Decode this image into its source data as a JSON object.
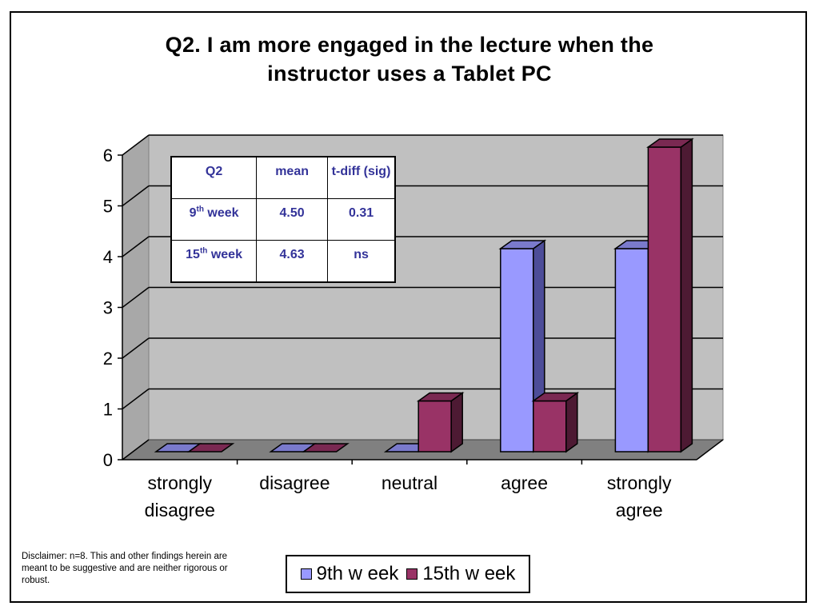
{
  "chart_data": {
    "type": "bar",
    "style": "3d-clustered-column",
    "title_lines": [
      "Q2.  I am more engaged in the lecture when the",
      "instructor uses a Tablet PC"
    ],
    "categories": [
      [
        "strongly",
        "disagree"
      ],
      [
        "disagree"
      ],
      [
        "neutral"
      ],
      [
        "agree"
      ],
      [
        "strongly",
        "agree"
      ]
    ],
    "series": [
      {
        "name": "9th w eek",
        "values": [
          0,
          0,
          0,
          4,
          4
        ],
        "color": "#9999FF",
        "side_color": "#4D4D99",
        "top_color": "#7A7ACC"
      },
      {
        "name": "15th w eek",
        "values": [
          0,
          0,
          1,
          1,
          6
        ],
        "color": "#993366",
        "side_color": "#4D1A33",
        "top_color": "#7A2952"
      }
    ],
    "ylim": [
      0,
      6
    ],
    "yticks": [
      "0",
      "1",
      "2",
      "3",
      "4",
      "5",
      "6"
    ],
    "grid": true,
    "legend_position": "bottom"
  },
  "stats_table": {
    "header": [
      "Q2",
      "mean",
      "t-diff (sig)"
    ],
    "rows": [
      {
        "label": "9",
        "sup": "th",
        "suffix": " week",
        "mean": "4.50",
        "tdiff": "0.31"
      },
      {
        "label": "15",
        "sup": "th",
        "suffix": " week",
        "mean": "4.63",
        "tdiff": "ns"
      }
    ]
  },
  "disclaimer": "Disclaimer:  n=8.  This and other findings herein are meant to be suggestive and are neither rigorous or robust."
}
